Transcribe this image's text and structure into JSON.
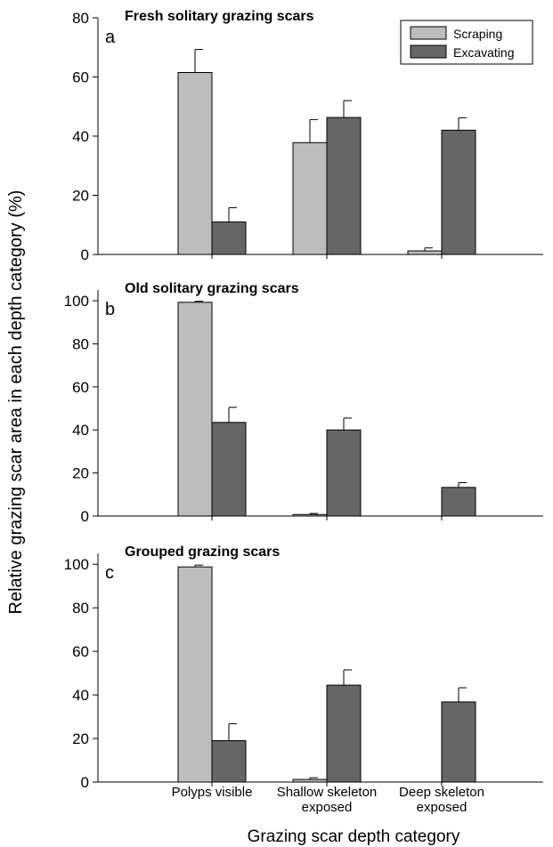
{
  "figure": {
    "ylabel": "Relative grazing scar area in each depth category (%)",
    "xlabel": "Grazing scar depth category",
    "categories": [
      [
        "Polyps visible"
      ],
      [
        "Shallow skeleton",
        "exposed"
      ],
      [
        "Deep skeleton",
        "exposed"
      ]
    ],
    "legend": {
      "placement": "top-right",
      "entries": [
        {
          "name": "Scraping",
          "color": "#bdbdbd"
        },
        {
          "name": "Excavating",
          "color": "#666666"
        }
      ]
    }
  },
  "chart_data": [
    {
      "type": "bar",
      "panel": "a",
      "title": "Fresh solitary grazing scars",
      "categories": [
        "Polyps visible",
        "Shallow skeleton exposed",
        "Deep skeleton exposed"
      ],
      "ylim": [
        0,
        80
      ],
      "yticks": [
        0,
        20,
        40,
        60,
        80
      ],
      "series": [
        {
          "name": "Scraping",
          "color": "#bdbdbd",
          "values": [
            61.5,
            37.8,
            1.2
          ],
          "errors": [
            7.8,
            7.8,
            1.0
          ]
        },
        {
          "name": "Excavating",
          "color": "#666666",
          "values": [
            11.0,
            46.3,
            42.0
          ],
          "errors": [
            4.8,
            5.7,
            4.2
          ]
        }
      ]
    },
    {
      "type": "bar",
      "panel": "b",
      "title": "Old solitary grazing scars",
      "categories": [
        "Polyps visible",
        "Shallow skeleton exposed",
        "Deep skeleton exposed"
      ],
      "ylim": [
        0,
        105
      ],
      "yticks": [
        0,
        20,
        40,
        60,
        80,
        100
      ],
      "series": [
        {
          "name": "Scraping",
          "color": "#bdbdbd",
          "values": [
            99.3,
            0.7,
            0
          ],
          "errors": [
            0.5,
            0.5,
            0
          ]
        },
        {
          "name": "Excavating",
          "color": "#666666",
          "values": [
            43.5,
            40.0,
            13.3
          ],
          "errors": [
            7.0,
            5.5,
            2.2
          ]
        }
      ]
    },
    {
      "type": "bar",
      "panel": "c",
      "title": "Grouped grazing scars",
      "categories": [
        "Polyps visible",
        "Shallow skeleton exposed",
        "Deep skeleton exposed"
      ],
      "ylim": [
        0,
        105
      ],
      "yticks": [
        0,
        20,
        40,
        60,
        80,
        100
      ],
      "series": [
        {
          "name": "Scraping",
          "color": "#bdbdbd",
          "values": [
            98.8,
            1.2,
            0
          ],
          "errors": [
            0.8,
            0.8,
            0
          ]
        },
        {
          "name": "Excavating",
          "color": "#666666",
          "values": [
            19.0,
            44.5,
            36.8
          ],
          "errors": [
            7.8,
            7.0,
            6.5
          ]
        }
      ]
    }
  ]
}
